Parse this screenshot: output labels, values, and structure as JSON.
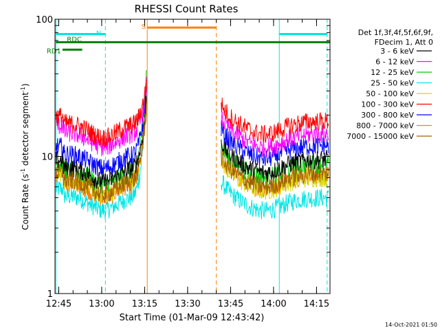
{
  "chart_data": {
    "type": "line",
    "title": "RHESSI Count Rates",
    "xlabel": "Start Time (01-Mar-09 12:43:42)",
    "ylabel_main": "Count Rate (s",
    "ylabel_sup1": "-1",
    "ylabel_mid": " detector segment",
    "ylabel_sup2": "-1",
    "ylabel_end": ")",
    "yscale": "log",
    "ylim": [
      1,
      100
    ],
    "xlim_minutes": [
      0,
      96
    ],
    "y_ticks": [
      {
        "value": 1,
        "label": "1"
      },
      {
        "value": 10,
        "label": "10"
      },
      {
        "value": 100,
        "label": "100"
      }
    ],
    "x_ticks": [
      {
        "minute": 1.3,
        "label": "12:45"
      },
      {
        "minute": 16.3,
        "label": "13:00"
      },
      {
        "minute": 31.3,
        "label": "13:15"
      },
      {
        "minute": 46.3,
        "label": "13:30"
      },
      {
        "minute": 61.3,
        "label": "13:45"
      },
      {
        "minute": 76.3,
        "label": "14:00"
      },
      {
        "minute": 91.3,
        "label": "14:15"
      }
    ],
    "legend_header": [
      "Det 1f,3f,4f,5f,6f,9f,",
      "FDecim 1, Att 0"
    ],
    "series": [
      {
        "name": "3 - 6 keV",
        "color": "#000000",
        "level_pre": 8.4,
        "level_post": 9.5,
        "flare_peak": 28
      },
      {
        "name": "6 - 12 keV",
        "color": "#ff00ff",
        "level_pre": 15.0,
        "level_post": 14.5,
        "flare_peak": 33
      },
      {
        "name": "12 - 25 keV",
        "color": "#00cc00",
        "level_pre": 8.0,
        "level_post": 8.8,
        "flare_peak": 45
      },
      {
        "name": "25 - 50 keV",
        "color": "#00e5e5",
        "level_pre": 5.2,
        "level_post": 5.0,
        "flare_peak": 30
      },
      {
        "name": "50 - 100 keV",
        "color": "#d8d800",
        "level_pre": 6.8,
        "level_post": 7.0,
        "flare_peak": 28
      },
      {
        "name": "100 - 300 keV",
        "color": "#ff0000",
        "level_pre": 17.5,
        "level_post": 18.0,
        "flare_peak": 35
      },
      {
        "name": "300 - 800 keV",
        "color": "#0000ff",
        "level_pre": 10.5,
        "level_post": 12.0,
        "flare_peak": 32
      },
      {
        "name": "800 - 7000 keV",
        "color": "#ff8000",
        "level_pre": 6.5,
        "level_post": 7.3,
        "flare_peak": 25
      },
      {
        "name": "7000 - 15000 keV",
        "color": "#a06000",
        "level_pre": 6.8,
        "level_post": 7.5,
        "flare_peak": 25
      }
    ],
    "data_gap_minutes": [
      32.0,
      56.5
    ],
    "vertical_markers": [
      {
        "minute": 0.3,
        "color": "#00e5e5",
        "style": "solid"
      },
      {
        "minute": 17.6,
        "color": "#00e5e5",
        "style": "dashed"
      },
      {
        "minute": 32.2,
        "color": "#ff8000",
        "style": "solid"
      },
      {
        "minute": 56.3,
        "color": "#ff8000",
        "style": "dashed"
      },
      {
        "minute": 78.3,
        "color": "#00e5e5",
        "style": "solid"
      },
      {
        "minute": 95.0,
        "color": "#00e5e5",
        "style": "dashed"
      }
    ],
    "flag_bars": [
      {
        "label": "N",
        "color": "#00e5e5",
        "y_value": 78,
        "segments": [
          [
            0.3,
            17.6
          ],
          [
            78.3,
            95.0
          ]
        ]
      },
      {
        "label": "S",
        "color": "#ff8000",
        "y_value": 87,
        "segments": [
          [
            32.2,
            56.3
          ]
        ]
      },
      {
        "label": "RDC",
        "color": "#008000",
        "y_value": 68,
        "segments": [
          [
            0.3,
            96.0
          ]
        ]
      },
      {
        "label": "RD1",
        "color": "#008000",
        "y_value": 60,
        "segments": [
          [
            2.6,
            9.5
          ]
        ]
      }
    ],
    "footer_timestamp": "14-Oct-2021 01:50"
  }
}
